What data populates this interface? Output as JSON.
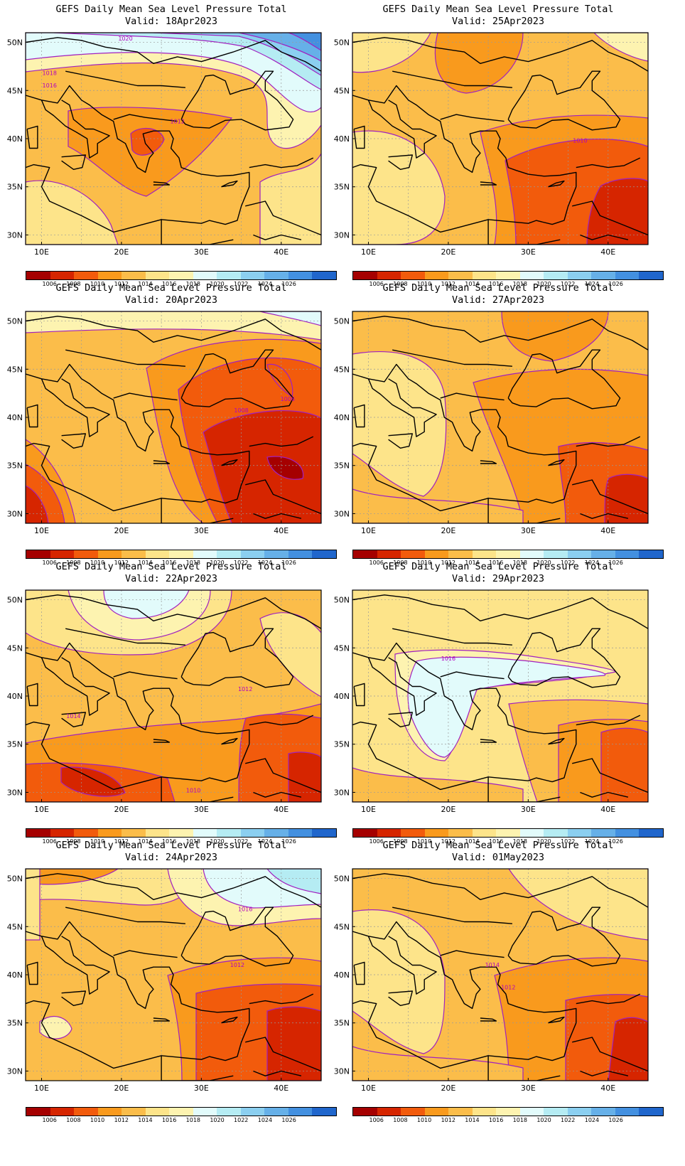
{
  "legend": {
    "levels": [
      "1006",
      "1008",
      "1010",
      "1012",
      "1014",
      "1016",
      "1018",
      "1020",
      "1022",
      "1024",
      "1026"
    ],
    "colors": [
      "#a50000",
      "#d62500",
      "#f25b0c",
      "#f99a1d",
      "#fbbd4a",
      "#fde48a",
      "#fdf3b0",
      "#e2fbfb",
      "#b5ecf3",
      "#8bcff0",
      "#66b0e8",
      "#4390e0",
      "#2066cc"
    ]
  },
  "axes": {
    "lat_labels": [
      "50N",
      "45N",
      "40N",
      "35N",
      "30N"
    ],
    "lon_labels": [
      "10E",
      "20E",
      "30E",
      "40E"
    ],
    "lat_range": [
      29,
      51
    ],
    "lon_range": [
      8,
      45
    ]
  },
  "panels": [
    {
      "title": "GEFS Daily Mean Sea Level Pressure Total",
      "valid": "Valid: 18Apr2023",
      "contour_labels": [
        {
          "text": "1020",
          "lon": 20.5,
          "lat": 50.2
        },
        {
          "text": "1018",
          "lon": 11.0,
          "lat": 46.6
        },
        {
          "text": "1016",
          "lon": 11.0,
          "lat": 45.3
        },
        {
          "text": "1012",
          "lon": 27.0,
          "lat": 41.6
        }
      ],
      "dominant_range": "1010-1018"
    },
    {
      "title": "GEFS Daily Mean Sea Level Pressure Total",
      "valid": "Valid: 25Apr2023",
      "contour_labels": [
        {
          "text": "1010",
          "lon": 36.5,
          "lat": 39.6
        }
      ],
      "dominant_range": "1006-1016"
    },
    {
      "title": "GEFS Daily Mean Sea Level Pressure Total",
      "valid": "Valid: 20Apr2023",
      "contour_labels": [
        {
          "text": "1008",
          "lon": 35.0,
          "lat": 40.5
        },
        {
          "text": "1006",
          "lon": 40.8,
          "lat": 41.7
        }
      ],
      "dominant_range": "1006-1018"
    },
    {
      "title": "GEFS Daily Mean Sea Level Pressure Total",
      "valid": "Valid: 27Apr2023",
      "contour_labels": [],
      "dominant_range": "1008-1016"
    },
    {
      "title": "GEFS Daily Mean Sea Level Pressure Total",
      "valid": "Valid: 22Apr2023",
      "contour_labels": [
        {
          "text": "1012",
          "lon": 35.5,
          "lat": 40.5
        },
        {
          "text": "1014",
          "lon": 14.0,
          "lat": 37.7
        },
        {
          "text": "1010",
          "lon": 29.0,
          "lat": 30.0
        }
      ],
      "dominant_range": "1006-1018"
    },
    {
      "title": "GEFS Daily Mean Sea Level Pressure Total",
      "valid": "Valid: 29Apr2023",
      "contour_labels": [
        {
          "text": "1016",
          "lon": 20.0,
          "lat": 43.7
        }
      ],
      "dominant_range": "1008-1018"
    },
    {
      "title": "GEFS Daily Mean Sea Level Pressure Total",
      "valid": "Valid: 24Apr2023",
      "contour_labels": [
        {
          "text": "1016",
          "lon": 35.5,
          "lat": 46.6
        },
        {
          "text": "1012",
          "lon": 34.5,
          "lat": 40.8
        }
      ],
      "dominant_range": "1008-1020"
    },
    {
      "title": "GEFS Daily Mean Sea Level Pressure Total",
      "valid": "Valid: 01May2023",
      "contour_labels": [
        {
          "text": "1014",
          "lon": 25.5,
          "lat": 40.8
        },
        {
          "text": "1012",
          "lon": 27.5,
          "lat": 38.5
        }
      ],
      "dominant_range": "1008-1016"
    }
  ]
}
